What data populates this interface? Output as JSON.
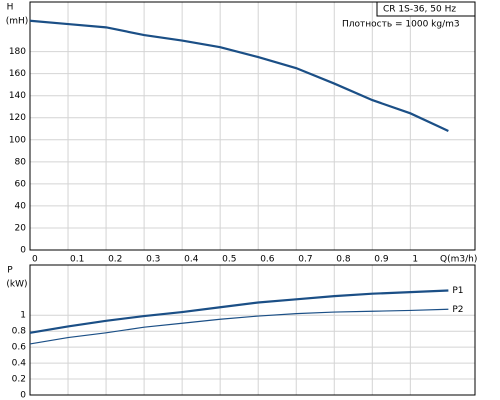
{
  "chart_data": [
    {
      "type": "line",
      "y_label": "H",
      "y_unit": "(mH)",
      "x_label": "Q(m3/h)",
      "annotations": [
        "CR 1S-36, 50 Hz",
        "Плотность = 1000 kg/m3"
      ],
      "x": [
        0,
        0.1,
        0.2,
        0.3,
        0.4,
        0.5,
        0.6,
        0.7,
        0.8,
        0.9,
        1.0,
        1.1
      ],
      "series": [
        {
          "color": "#1b4f86",
          "values": [
            208,
            205,
            202,
            195,
            190,
            184,
            175,
            165,
            151,
            136,
            124,
            108
          ]
        }
      ],
      "xlim": [
        0,
        1.17
      ],
      "xticks": [
        0,
        0.1,
        0.2,
        0.3,
        0.4,
        0.5,
        0.6,
        0.7,
        0.8,
        0.9,
        1
      ],
      "ylim": [
        0,
        225
      ],
      "yticks": [
        0,
        20,
        40,
        60,
        80,
        100,
        120,
        140,
        160,
        180
      ],
      "grid": true
    },
    {
      "type": "line",
      "y_label": "P",
      "y_unit": "(kW)",
      "x": [
        0,
        0.1,
        0.2,
        0.3,
        0.4,
        0.5,
        0.6,
        0.7,
        0.8,
        0.9,
        1.0,
        1.1
      ],
      "series": [
        {
          "name": "P1",
          "color": "#1b4f86",
          "values": [
            0.78,
            0.86,
            0.93,
            0.99,
            1.04,
            1.1,
            1.16,
            1.2,
            1.24,
            1.27,
            1.29,
            1.31
          ]
        },
        {
          "name": "P2",
          "color": "#1b4f86",
          "values": [
            0.64,
            0.72,
            0.78,
            0.85,
            0.9,
            0.95,
            0.99,
            1.02,
            1.04,
            1.05,
            1.06,
            1.075
          ]
        }
      ],
      "xlim": [
        0,
        1.17
      ],
      "ylim": [
        0,
        1.63
      ],
      "yticks": [
        0,
        0.2,
        0.4,
        0.6,
        0.8,
        1
      ],
      "grid": true
    }
  ]
}
